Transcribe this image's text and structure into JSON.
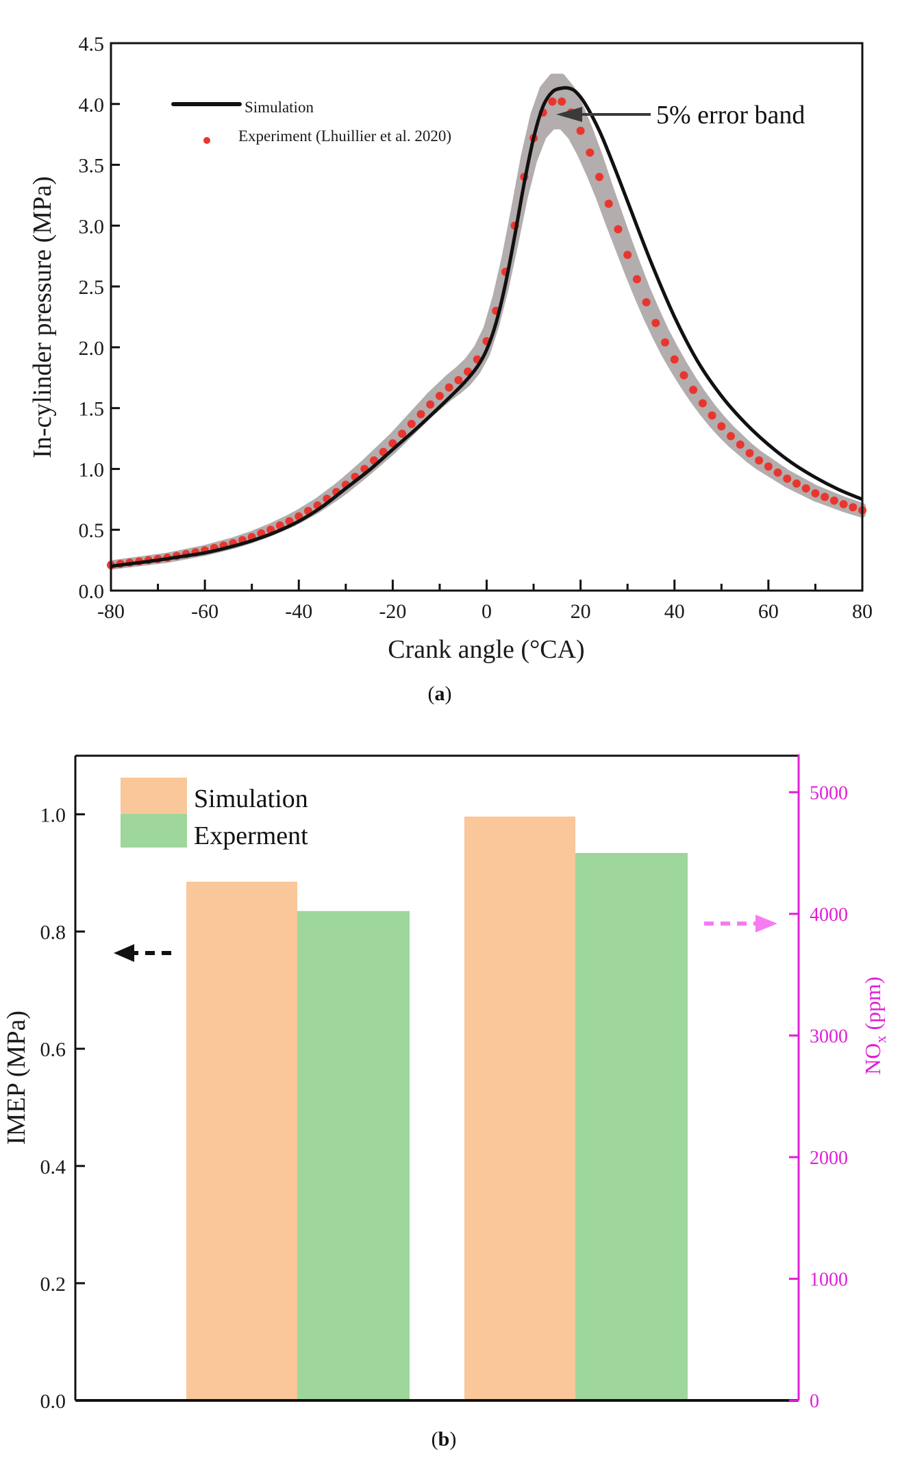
{
  "chart_data": [
    {
      "id": "a",
      "type": "line",
      "caption": "(a)",
      "caption_letter": "a",
      "xlabel": "Crank angle (°CA)",
      "ylabel": "In-cylinder pressure (MPa)",
      "xlim": [
        -80,
        80
      ],
      "ylim": [
        0,
        4.5
      ],
      "xticks": [
        -80,
        -60,
        -40,
        -20,
        0,
        20,
        40,
        60,
        80
      ],
      "xtick_labels": [
        "-80",
        "-60",
        "-40",
        "-20",
        "0",
        "20",
        "40",
        "60",
        "80"
      ],
      "xminor_step": 10,
      "yticks": [
        0,
        0.5,
        1.0,
        1.5,
        2.0,
        2.5,
        3.0,
        3.5,
        4.0,
        4.5
      ],
      "ytick_labels": [
        "0.0",
        "0.5",
        "1.0",
        "1.5",
        "2.0",
        "2.5",
        "3.0",
        "3.5",
        "4.0",
        "4.5"
      ],
      "grid": false,
      "legend_position": "top-left",
      "annotation": {
        "text": "5% error band",
        "points_to": [
          16,
          3.9
        ]
      },
      "error_band_fraction": 0.05,
      "colors": {
        "simulation": "#111111",
        "experiment": "#e8362f",
        "band": "#b3adad"
      },
      "series": [
        {
          "name": "Simulation",
          "style": "line",
          "x": [
            -80,
            -75,
            -70,
            -65,
            -60,
            -55,
            -50,
            -45,
            -40,
            -35,
            -30,
            -25,
            -20,
            -15,
            -10,
            -5,
            -2,
            0,
            2,
            4,
            6,
            8,
            10,
            12,
            14,
            16,
            17.5,
            19,
            21,
            24,
            27,
            30,
            35,
            40,
            45,
            50,
            55,
            60,
            65,
            70,
            75,
            80
          ],
          "y": [
            0.2,
            0.225,
            0.25,
            0.28,
            0.31,
            0.355,
            0.41,
            0.48,
            0.57,
            0.69,
            0.84,
            0.99,
            1.16,
            1.33,
            1.51,
            1.7,
            1.84,
            1.98,
            2.2,
            2.52,
            2.92,
            3.35,
            3.72,
            3.98,
            4.1,
            4.13,
            4.13,
            4.1,
            4.0,
            3.78,
            3.5,
            3.2,
            2.7,
            2.25,
            1.88,
            1.6,
            1.38,
            1.2,
            1.05,
            0.93,
            0.83,
            0.75
          ]
        },
        {
          "name": "Experiment (Lhuillier et al. 2020)",
          "style": "scatter",
          "x": [
            -80,
            -78,
            -76,
            -74,
            -72,
            -70,
            -68,
            -66,
            -64,
            -62,
            -60,
            -58,
            -56,
            -54,
            -52,
            -50,
            -48,
            -46,
            -44,
            -42,
            -40,
            -38,
            -36,
            -34,
            -32,
            -30,
            -28,
            -26,
            -24,
            -22,
            -20,
            -18,
            -16,
            -14,
            -12,
            -10,
            -8,
            -6,
            -4,
            -2,
            0,
            2,
            4,
            6,
            8,
            10,
            12,
            14,
            16,
            18,
            20,
            22,
            24,
            26,
            28,
            30,
            32,
            34,
            36,
            38,
            40,
            42,
            44,
            46,
            48,
            50,
            52,
            54,
            56,
            58,
            60,
            62,
            64,
            66,
            68,
            70,
            72,
            74,
            76,
            78,
            80
          ],
          "y": [
            0.21,
            0.22,
            0.23,
            0.24,
            0.25,
            0.26,
            0.27,
            0.285,
            0.3,
            0.315,
            0.33,
            0.35,
            0.37,
            0.39,
            0.415,
            0.44,
            0.47,
            0.5,
            0.535,
            0.57,
            0.61,
            0.655,
            0.7,
            0.755,
            0.81,
            0.87,
            0.935,
            1.0,
            1.07,
            1.14,
            1.21,
            1.29,
            1.37,
            1.45,
            1.53,
            1.6,
            1.67,
            1.73,
            1.8,
            1.9,
            2.05,
            2.3,
            2.62,
            3.0,
            3.4,
            3.72,
            3.93,
            4.02,
            4.02,
            3.93,
            3.78,
            3.6,
            3.4,
            3.18,
            2.97,
            2.76,
            2.56,
            2.37,
            2.2,
            2.04,
            1.9,
            1.77,
            1.65,
            1.54,
            1.44,
            1.35,
            1.27,
            1.2,
            1.13,
            1.07,
            1.02,
            0.97,
            0.92,
            0.88,
            0.84,
            0.8,
            0.77,
            0.74,
            0.71,
            0.685,
            0.66
          ]
        }
      ]
    },
    {
      "id": "b",
      "type": "bar",
      "caption": "(b)",
      "caption_letter": "b",
      "xlabel": "",
      "ylabel": "IMEP (MPa)",
      "ylabel_right": "NOx (ppm)",
      "ylabel_right_main": "NO",
      "ylabel_right_sub": "x",
      "ylabel_right_unit": " (ppm)",
      "ylim": [
        0,
        1.1
      ],
      "ylim_right": [
        0,
        5300
      ],
      "yticks": [
        0,
        0.2,
        0.4,
        0.6,
        0.8,
        1.0
      ],
      "ytick_labels": [
        "0.0",
        "0.2",
        "0.4",
        "0.6",
        "0.8",
        "1.0"
      ],
      "yticks_right": [
        0,
        1000,
        2000,
        3000,
        4000,
        5000
      ],
      "ytick_labels_right": [
        "0",
        "1000",
        "2000",
        "3000",
        "4000",
        "5000"
      ],
      "grid": false,
      "legend_position": "top-left",
      "colors": {
        "simulation": "#f9c799",
        "experiment": "#9ed69c",
        "right_axis": "#e020d8",
        "right_arrow": "#f57cf0",
        "left_arrow": "#111111"
      },
      "categories": [
        "IMEP",
        "NOx"
      ],
      "axis_for_category": [
        "left",
        "right"
      ],
      "series": [
        {
          "name": "Simulation",
          "values": [
            0.885,
            4800
          ]
        },
        {
          "name": "Experment",
          "values": [
            0.835,
            4500
          ]
        }
      ],
      "annotations": [
        {
          "type": "arrow",
          "direction": "left",
          "style": "dashed",
          "meaning": "IMEP uses left axis"
        },
        {
          "type": "arrow",
          "direction": "right",
          "style": "dashed",
          "meaning": "NOx uses right axis"
        }
      ]
    }
  ]
}
